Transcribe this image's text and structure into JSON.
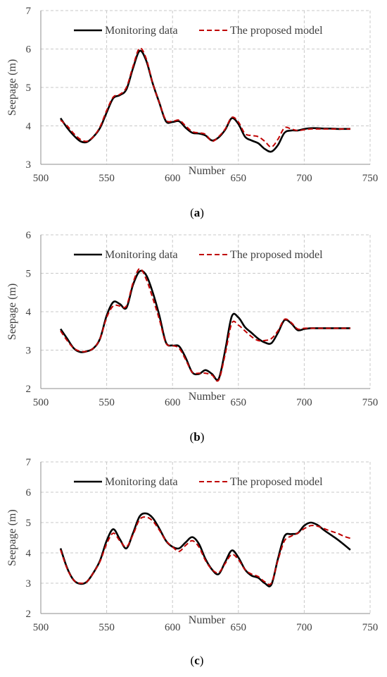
{
  "chart_data": [
    {
      "type": "line",
      "caption": "a",
      "xlabel": "Number",
      "ylabel": "Seepage (m)",
      "xlim": [
        500,
        750
      ],
      "ylim": [
        3,
        7
      ],
      "xticks": [
        500,
        550,
        600,
        650,
        700,
        750
      ],
      "yticks": [
        3,
        4,
        5,
        6,
        7
      ],
      "grid": true,
      "legend": "top",
      "series": [
        {
          "name": "Monitoring data",
          "color": "#000000",
          "style": "solid",
          "x": [
            515,
            520,
            525,
            530,
            535,
            540,
            545,
            550,
            555,
            560,
            565,
            570,
            575,
            580,
            585,
            590,
            595,
            600,
            605,
            610,
            615,
            620,
            625,
            630,
            635,
            640,
            645,
            650,
            655,
            660,
            665,
            670,
            675,
            680,
            685,
            690,
            695,
            700,
            705,
            710,
            715,
            720,
            725,
            730,
            735
          ],
          "y": [
            4.2,
            3.95,
            3.75,
            3.6,
            3.58,
            3.72,
            3.95,
            4.35,
            4.72,
            4.8,
            4.95,
            5.5,
            5.95,
            5.7,
            5.1,
            4.6,
            4.12,
            4.1,
            4.12,
            3.95,
            3.82,
            3.8,
            3.75,
            3.62,
            3.7,
            3.9,
            4.2,
            4.05,
            3.72,
            3.62,
            3.55,
            3.4,
            3.33,
            3.5,
            3.82,
            3.88,
            3.88,
            3.92,
            3.94,
            3.94,
            3.93,
            3.93,
            3.92,
            3.92,
            3.92
          ]
        },
        {
          "name": "The proposed model",
          "color": "#c00000",
          "style": "dashed",
          "x": [
            515,
            520,
            525,
            530,
            535,
            540,
            545,
            550,
            555,
            560,
            565,
            570,
            575,
            580,
            585,
            590,
            595,
            600,
            605,
            610,
            615,
            620,
            625,
            630,
            635,
            640,
            645,
            650,
            655,
            660,
            665,
            670,
            675,
            680,
            685,
            690,
            695,
            700,
            705,
            710,
            715,
            720,
            725,
            730,
            735
          ],
          "y": [
            4.15,
            4.0,
            3.8,
            3.65,
            3.6,
            3.72,
            3.98,
            4.4,
            4.75,
            4.82,
            5.0,
            5.55,
            6.02,
            5.75,
            5.1,
            4.6,
            4.15,
            4.12,
            4.15,
            4.0,
            3.85,
            3.82,
            3.78,
            3.6,
            3.72,
            3.92,
            4.22,
            4.1,
            3.8,
            3.75,
            3.72,
            3.6,
            3.45,
            3.65,
            3.95,
            3.92,
            3.88,
            3.9,
            3.92,
            3.92,
            3.92,
            3.92,
            3.92,
            3.92,
            3.92
          ]
        }
      ]
    },
    {
      "type": "line",
      "caption": "b",
      "xlabel": "Number",
      "ylabel": "Seepage (m)",
      "xlim": [
        500,
        750
      ],
      "ylim": [
        2,
        6
      ],
      "xticks": [
        500,
        550,
        600,
        650,
        700,
        750
      ],
      "yticks": [
        2,
        3,
        4,
        5,
        6
      ],
      "grid": true,
      "legend": "top",
      "series": [
        {
          "name": "Monitoring data",
          "color": "#000000",
          "style": "solid",
          "x": [
            515,
            520,
            525,
            530,
            535,
            540,
            545,
            550,
            555,
            560,
            565,
            570,
            575,
            580,
            585,
            590,
            595,
            600,
            605,
            610,
            615,
            620,
            625,
            630,
            635,
            640,
            645,
            650,
            655,
            660,
            665,
            670,
            675,
            680,
            685,
            690,
            695,
            700,
            705,
            710,
            715,
            720,
            725,
            730,
            735
          ],
          "y": [
            3.55,
            3.3,
            3.05,
            2.95,
            2.97,
            3.05,
            3.3,
            3.9,
            4.25,
            4.2,
            4.1,
            4.7,
            5.05,
            4.95,
            4.5,
            3.9,
            3.2,
            3.12,
            3.1,
            2.8,
            2.42,
            2.38,
            2.48,
            2.38,
            2.25,
            3.0,
            3.88,
            3.85,
            3.6,
            3.45,
            3.3,
            3.2,
            3.18,
            3.45,
            3.78,
            3.7,
            3.52,
            3.55,
            3.57,
            3.57,
            3.57,
            3.57,
            3.57,
            3.57,
            3.57
          ]
        },
        {
          "name": "The proposed model",
          "color": "#c00000",
          "style": "dashed",
          "x": [
            515,
            520,
            525,
            530,
            535,
            540,
            545,
            550,
            555,
            560,
            565,
            570,
            575,
            580,
            585,
            590,
            595,
            600,
            605,
            610,
            615,
            620,
            625,
            630,
            635,
            640,
            645,
            650,
            655,
            660,
            665,
            670,
            675,
            680,
            685,
            690,
            695,
            700,
            705,
            710,
            715,
            720,
            725,
            730,
            735
          ],
          "y": [
            3.5,
            3.25,
            3.05,
            2.97,
            2.97,
            3.05,
            3.3,
            3.85,
            4.15,
            4.15,
            4.15,
            4.75,
            5.12,
            4.85,
            4.35,
            3.8,
            3.18,
            3.12,
            3.05,
            2.75,
            2.42,
            2.4,
            2.4,
            2.35,
            2.22,
            2.9,
            3.7,
            3.65,
            3.5,
            3.35,
            3.25,
            3.25,
            3.3,
            3.5,
            3.8,
            3.72,
            3.55,
            3.57,
            3.57,
            3.57,
            3.57,
            3.57,
            3.57,
            3.57,
            3.57
          ]
        }
      ]
    },
    {
      "type": "line",
      "caption": "c",
      "xlabel": "Number",
      "ylabel": "Seepage (m)",
      "xlim": [
        500,
        750
      ],
      "ylim": [
        2,
        7
      ],
      "xticks": [
        500,
        550,
        600,
        650,
        700,
        750
      ],
      "yticks": [
        2,
        3,
        4,
        5,
        6,
        7
      ],
      "grid": true,
      "legend": "top",
      "series": [
        {
          "name": "Monitoring data",
          "color": "#000000",
          "style": "solid",
          "x": [
            515,
            520,
            525,
            530,
            535,
            540,
            545,
            550,
            555,
            560,
            565,
            570,
            575,
            580,
            585,
            590,
            595,
            600,
            605,
            610,
            615,
            620,
            625,
            630,
            635,
            640,
            645,
            650,
            655,
            660,
            665,
            670,
            675,
            680,
            685,
            690,
            695,
            700,
            705,
            710,
            715,
            720,
            725,
            730,
            735
          ],
          "y": [
            4.15,
            3.5,
            3.1,
            2.98,
            3.05,
            3.35,
            3.75,
            4.4,
            4.78,
            4.45,
            4.15,
            4.65,
            5.2,
            5.3,
            5.15,
            4.8,
            4.4,
            4.2,
            4.15,
            4.35,
            4.52,
            4.3,
            3.8,
            3.45,
            3.3,
            3.7,
            4.08,
            3.85,
            3.45,
            3.25,
            3.18,
            3.0,
            2.95,
            3.8,
            4.55,
            4.62,
            4.65,
            4.9,
            5.0,
            4.92,
            4.75,
            4.6,
            4.45,
            4.28,
            4.1
          ]
        },
        {
          "name": "The proposed model",
          "color": "#c00000",
          "style": "dashed",
          "x": [
            515,
            520,
            525,
            530,
            535,
            540,
            545,
            550,
            555,
            560,
            565,
            570,
            575,
            580,
            585,
            590,
            595,
            600,
            605,
            610,
            615,
            620,
            625,
            630,
            635,
            640,
            645,
            650,
            655,
            660,
            665,
            670,
            675,
            680,
            685,
            690,
            695,
            700,
            705,
            710,
            715,
            720,
            725,
            730,
            735
          ],
          "y": [
            4.1,
            3.48,
            3.1,
            3.0,
            3.05,
            3.35,
            3.72,
            4.3,
            4.65,
            4.4,
            4.2,
            4.6,
            5.1,
            5.18,
            5.05,
            4.75,
            4.4,
            4.2,
            4.05,
            4.25,
            4.4,
            4.2,
            3.75,
            3.45,
            3.35,
            3.65,
            3.95,
            3.78,
            3.45,
            3.3,
            3.22,
            3.05,
            3.0,
            3.75,
            4.4,
            4.55,
            4.65,
            4.8,
            4.9,
            4.88,
            4.8,
            4.72,
            4.65,
            4.55,
            4.48
          ]
        }
      ]
    }
  ]
}
